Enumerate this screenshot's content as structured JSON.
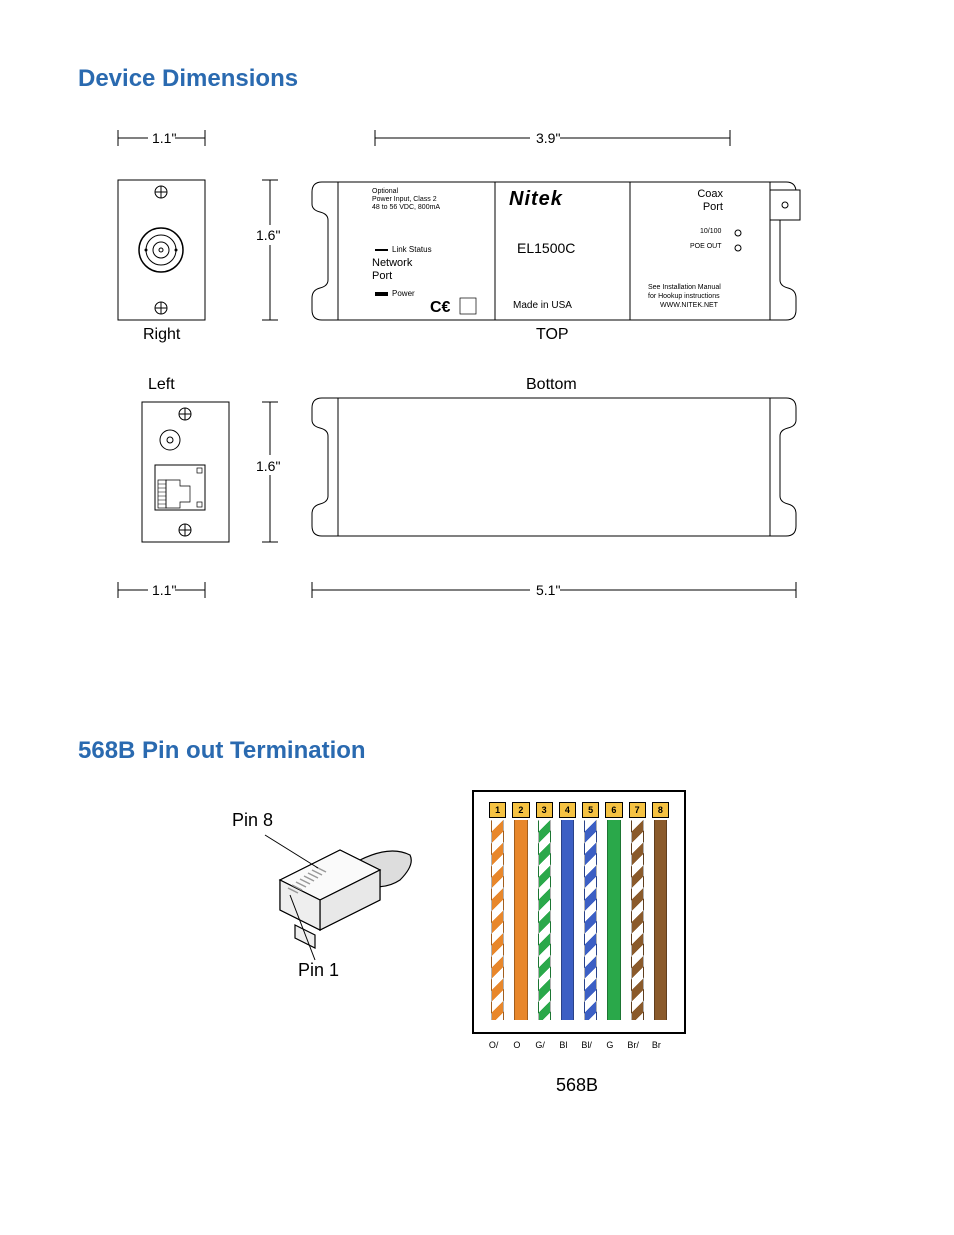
{
  "headings": {
    "dimensions": "Device Dimensions",
    "pinout": "568B Pin out Termination"
  },
  "dimensions": {
    "width_right": "1.1\"",
    "height_right": "1.6\"",
    "width_top": "3.9\"",
    "width_left": "1.1\"",
    "height_left": "1.6\"",
    "width_bottom": "5.1\""
  },
  "views": {
    "right": "Right",
    "top": "TOP",
    "left": "Left",
    "bottom": "Bottom"
  },
  "device": {
    "brand": "Nitek",
    "model": "EL1500C",
    "made": "Made in USA",
    "power_input_line1": "Optional",
    "power_input_line2": "Power Input, Class 2",
    "power_input_line3": "48 to 56 VDC, 800mA",
    "link_status": "Link Status",
    "network_port": "Network",
    "port": "Port",
    "power": "Power",
    "coax": "Coax",
    "coax_port": "Port",
    "led1": "10/100",
    "led2": "POE OUT",
    "manual_line1": "See Installation Manual",
    "manual_line2": "for Hookup instructions",
    "manual_line3": "WWW.NITEK.NET"
  },
  "pinout": {
    "pin8": "Pin 8",
    "pin1": "Pin 1",
    "label": "568B",
    "pins": [
      "1",
      "2",
      "3",
      "4",
      "5",
      "6",
      "7",
      "8"
    ],
    "pin_colors": [
      "#f5c242",
      "#f5c242",
      "#f5c242",
      "#f5c242",
      "#f5c242",
      "#f5c242",
      "#f5c242",
      "#f5c242"
    ],
    "wire_colors": [
      "#e8872b",
      "#e8872b",
      "#2aa84a",
      "#3c5fc4",
      "#3c5fc4",
      "#2aa84a",
      "#8a5a2b",
      "#8a5a2b"
    ],
    "wire_stripe": [
      true,
      false,
      true,
      false,
      true,
      false,
      true,
      false
    ],
    "wire_labels": [
      "O/",
      "O",
      "G/",
      "Bl",
      "Bl/",
      "G",
      "Br/",
      "Br"
    ]
  },
  "colors": {
    "heading": "#2a6ab0",
    "stroke": "#000000",
    "bg": "#ffffff"
  }
}
